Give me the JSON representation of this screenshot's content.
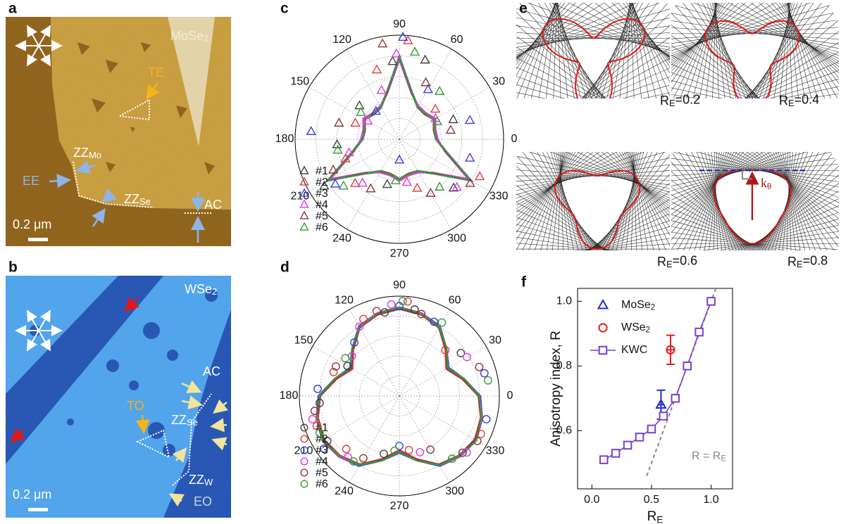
{
  "panel_a": {
    "label": "a",
    "material": {
      "base": "MoSe",
      "sub": "2"
    },
    "te": "TE",
    "zz_mo": {
      "base": "ZZ",
      "sub": "Mo"
    },
    "ee": "EE",
    "zz_se": {
      "base": "ZZ",
      "sub": "Se"
    },
    "ac": "AC",
    "scale": "0.2 μm"
  },
  "panel_b": {
    "label": "b",
    "material": {
      "base": "WSe",
      "sub": "2"
    },
    "ac": "AC",
    "to": "TO",
    "zz_se": {
      "base": "ZZ",
      "sub": "Se"
    },
    "zz_w": {
      "base": "ZZ",
      "sub": "W"
    },
    "eo": "EO",
    "scale": "0.2 μm"
  },
  "panel_e": {
    "label": "e",
    "plots": [
      {
        "base": "R",
        "sub": "E",
        "rest": "=0.2"
      },
      {
        "base": "R",
        "sub": "E",
        "rest": "=0.4"
      },
      {
        "base": "R",
        "sub": "E",
        "rest": "=0.6"
      },
      {
        "base": "R",
        "sub": "E",
        "rest": "=0.8"
      }
    ],
    "k": {
      "base": "k",
      "sub": "θ"
    }
  },
  "chart_data": [
    {
      "type": "polar",
      "panel_label": "c",
      "rlim": [
        0,
        1
      ],
      "rgrid": [
        0.2,
        0.4,
        0.6,
        0.8
      ],
      "thetaticks": [
        0,
        30,
        60,
        90,
        120,
        150,
        180,
        210,
        240,
        270,
        300,
        330
      ],
      "fit_theta": [
        0,
        15,
        30,
        45,
        60,
        75,
        90,
        105,
        120,
        135,
        150,
        165,
        180,
        195,
        210,
        225,
        240,
        255,
        270,
        285,
        300,
        315,
        330,
        345
      ],
      "series": [
        {
          "name": "#1",
          "color": "#404040",
          "marker": "triangle",
          "theta": [
            72,
            95,
            20,
            140,
            185,
            212,
            255,
            318
          ],
          "r": [
            0.8,
            0.75,
            0.55,
            0.5,
            0.6,
            0.85,
            0.45,
            0.7
          ],
          "fit": [
            0.35,
            0.34,
            0.38,
            0.34,
            0.35,
            0.46,
            0.78,
            0.46,
            0.35,
            0.34,
            0.38,
            0.34,
            0.35,
            0.46,
            0.78,
            0.46,
            0.35,
            0.34,
            0.38,
            0.34,
            0.35,
            0.46,
            0.78,
            0.46
          ]
        },
        {
          "name": "#2",
          "color": "#e03c3c",
          "marker": "triangle",
          "theta": [
            85,
            108,
            40,
            160,
            200,
            225,
            290,
            335
          ],
          "r": [
            0.95,
            0.7,
            0.45,
            0.45,
            0.55,
            0.6,
            0.5,
            0.85
          ],
          "fit": [
            0.36,
            0.35,
            0.39,
            0.35,
            0.36,
            0.47,
            0.79,
            0.47,
            0.36,
            0.35,
            0.39,
            0.35,
            0.36,
            0.47,
            0.79,
            0.47,
            0.36,
            0.35,
            0.39,
            0.35,
            0.36,
            0.47,
            0.79,
            0.47
          ]
        },
        {
          "name": "#3",
          "color": "#3c3ce0",
          "marker": "triangle",
          "theta": [
            88,
            60,
            15,
            130,
            175,
            215,
            270,
            345
          ],
          "r": [
            0.98,
            0.55,
            0.7,
            0.35,
            0.85,
            0.75,
            0.2,
            0.7
          ],
          "fit": [
            0.36,
            0.35,
            0.38,
            0.35,
            0.36,
            0.47,
            0.8,
            0.47,
            0.36,
            0.35,
            0.38,
            0.35,
            0.36,
            0.47,
            0.8,
            0.47,
            0.36,
            0.35,
            0.38,
            0.35,
            0.36,
            0.47,
            0.8,
            0.47
          ]
        },
        {
          "name": "#4",
          "color": "#e03ce0",
          "marker": "triangle",
          "theta": [
            92,
            110,
            30,
            150,
            195,
            230,
            280,
            320
          ],
          "r": [
            0.82,
            0.5,
            0.4,
            0.35,
            0.5,
            0.55,
            0.42,
            0.72
          ],
          "fit": [
            0.37,
            0.36,
            0.4,
            0.36,
            0.37,
            0.45,
            0.76,
            0.45,
            0.37,
            0.36,
            0.4,
            0.36,
            0.37,
            0.45,
            0.76,
            0.45,
            0.37,
            0.36,
            0.4,
            0.36,
            0.37,
            0.45,
            0.76,
            0.45
          ]
        },
        {
          "name": "#5",
          "color": "#8b3a3a",
          "marker": "triangle",
          "theta": [
            100,
            65,
            10,
            165,
            205,
            240,
            300,
            328
          ],
          "r": [
            0.93,
            0.6,
            0.5,
            0.6,
            0.7,
            0.55,
            0.6,
            0.8
          ],
          "fit": [
            0.35,
            0.34,
            0.38,
            0.34,
            0.35,
            0.46,
            0.79,
            0.46,
            0.35,
            0.34,
            0.38,
            0.34,
            0.35,
            0.46,
            0.79,
            0.46,
            0.35,
            0.34,
            0.38,
            0.34,
            0.35,
            0.46,
            0.79,
            0.46
          ]
        },
        {
          "name": "#6",
          "color": "#3a9a3a",
          "marker": "triangle",
          "theta": [
            80,
            50,
            25,
            145,
            190,
            220,
            265,
            310
          ],
          "r": [
            0.85,
            0.6,
            0.4,
            0.45,
            0.6,
            0.7,
            0.4,
            0.6
          ],
          "fit": [
            0.35,
            0.35,
            0.38,
            0.35,
            0.35,
            0.47,
            0.79,
            0.47,
            0.35,
            0.35,
            0.38,
            0.35,
            0.35,
            0.47,
            0.79,
            0.47,
            0.35,
            0.35,
            0.38,
            0.35,
            0.35,
            0.47,
            0.79,
            0.47
          ]
        }
      ]
    },
    {
      "type": "polar",
      "panel_label": "d",
      "rlim": [
        0,
        1
      ],
      "rgrid": [
        0.2,
        0.4,
        0.6,
        0.8
      ],
      "thetaticks": [
        0,
        30,
        60,
        90,
        120,
        150,
        180,
        210,
        240,
        270,
        300,
        330
      ],
      "fit_theta": [
        0,
        15,
        30,
        45,
        60,
        75,
        90,
        105,
        120,
        135,
        150,
        165,
        180,
        195,
        210,
        225,
        240,
        255,
        270,
        285,
        300,
        315,
        330,
        345
      ],
      "series": [
        {
          "name": "#1",
          "color": "#404040",
          "marker": "circle",
          "theta": [
            80,
            100,
            35,
            150,
            185,
            212,
            255,
            318
          ],
          "r": [
            0.88,
            0.85,
            0.75,
            0.6,
            0.8,
            0.85,
            0.6,
            0.85
          ],
          "fit": [
            0.8,
            0.66,
            0.56,
            0.66,
            0.8,
            0.85,
            0.88,
            0.85,
            0.8,
            0.66,
            0.56,
            0.66,
            0.8,
            0.85,
            0.88,
            0.85,
            0.8,
            0.66,
            0.56,
            0.66,
            0.8,
            0.85,
            0.88,
            0.85
          ]
        },
        {
          "name": "#2",
          "color": "#e03c3c",
          "marker": "circle",
          "theta": [
            85,
            115,
            45,
            160,
            200,
            225,
            280,
            335
          ],
          "r": [
            0.95,
            0.85,
            0.65,
            0.7,
            0.88,
            0.75,
            0.55,
            0.9
          ],
          "fit": [
            0.79,
            0.65,
            0.54,
            0.65,
            0.79,
            0.84,
            0.87,
            0.84,
            0.79,
            0.65,
            0.54,
            0.65,
            0.79,
            0.84,
            0.87,
            0.84,
            0.79,
            0.65,
            0.54,
            0.65,
            0.79,
            0.84,
            0.87,
            0.84
          ]
        },
        {
          "name": "#3",
          "color": "#3c3ce0",
          "marker": "circle",
          "theta": [
            90,
            65,
            15,
            130,
            175,
            215,
            270,
            345
          ],
          "r": [
            0.9,
            0.82,
            0.88,
            0.7,
            0.82,
            0.92,
            0.5,
            0.9
          ],
          "fit": [
            0.81,
            0.67,
            0.57,
            0.67,
            0.81,
            0.86,
            0.89,
            0.86,
            0.81,
            0.67,
            0.57,
            0.67,
            0.81,
            0.86,
            0.89,
            0.86,
            0.81,
            0.67,
            0.57,
            0.67,
            0.81,
            0.86,
            0.89,
            0.86
          ]
        },
        {
          "name": "#4",
          "color": "#e03ce0",
          "marker": "circle",
          "theta": [
            95,
            120,
            30,
            140,
            195,
            230,
            290,
            320
          ],
          "r": [
            0.92,
            0.8,
            0.78,
            0.62,
            0.9,
            0.8,
            0.6,
            0.88
          ],
          "fit": [
            0.8,
            0.66,
            0.56,
            0.66,
            0.8,
            0.86,
            0.88,
            0.86,
            0.8,
            0.66,
            0.56,
            0.66,
            0.8,
            0.86,
            0.88,
            0.86,
            0.8,
            0.66,
            0.56,
            0.66,
            0.8,
            0.86,
            0.88,
            0.86
          ]
        },
        {
          "name": "#5",
          "color": "#8b3a3a",
          "marker": "circle",
          "theta": [
            75,
            105,
            20,
            155,
            190,
            240,
            300,
            330
          ],
          "r": [
            0.85,
            0.88,
            0.85,
            0.7,
            0.86,
            0.72,
            0.62,
            0.9
          ],
          "fit": [
            0.79,
            0.66,
            0.55,
            0.66,
            0.79,
            0.85,
            0.87,
            0.85,
            0.79,
            0.66,
            0.55,
            0.66,
            0.79,
            0.85,
            0.87,
            0.85,
            0.79,
            0.66,
            0.55,
            0.66,
            0.79,
            0.85,
            0.87,
            0.85
          ]
        },
        {
          "name": "#6",
          "color": "#3a9a3a",
          "marker": "circle",
          "theta": [
            88,
            60,
            10,
            145,
            205,
            235,
            265,
            310
          ],
          "r": [
            0.95,
            0.85,
            0.9,
            0.66,
            0.88,
            0.8,
            0.55,
            0.82
          ],
          "fit": [
            0.8,
            0.67,
            0.56,
            0.67,
            0.8,
            0.85,
            0.89,
            0.85,
            0.8,
            0.67,
            0.56,
            0.67,
            0.8,
            0.85,
            0.89,
            0.85,
            0.8,
            0.67,
            0.56,
            0.67,
            0.8,
            0.85,
            0.89,
            0.85
          ]
        }
      ]
    },
    {
      "type": "line",
      "panel_label": "f",
      "xlabel": {
        "base": "R",
        "sub": "E"
      },
      "ylabel": "Anisotropy index, R",
      "xlim": [
        -0.12,
        1.18
      ],
      "ylim": [
        0.42,
        1.04
      ],
      "xticks": [
        {
          "value": 0,
          "label": "0.0"
        },
        0.5,
        {
          "value": 1,
          "label": "1.0"
        }
      ],
      "yticks": [
        0.6,
        0.8,
        {
          "value": 1,
          "label": "1.0"
        }
      ],
      "series": [
        {
          "name": {
            "base": "MoSe",
            "sub": "2"
          },
          "color": "#1f2fd0",
          "marker": "triangle",
          "x": [
            0.58
          ],
          "values": [
            0.68
          ],
          "xerr": [
            0.03
          ],
          "yerr": [
            0.045
          ]
        },
        {
          "name": {
            "base": "WSe",
            "sub": "2"
          },
          "color": "#e02020",
          "marker": "circle",
          "x": [
            0.66
          ],
          "values": [
            0.85
          ],
          "xerr": [
            0.03
          ],
          "yerr": [
            0.045
          ]
        },
        {
          "name": "KWC",
          "color": "#7b3fd0",
          "marker": "square",
          "x": [
            0.1,
            0.2,
            0.3,
            0.4,
            0.5,
            0.6,
            0.7,
            0.8,
            0.9,
            1.0
          ],
          "values": [
            0.51,
            0.53,
            0.555,
            0.58,
            0.605,
            0.645,
            0.7,
            0.8,
            0.905,
            1.0
          ]
        }
      ],
      "reference_line": {
        "label": {
          "base": "R = R",
          "sub": "E"
        },
        "color": "#888888",
        "x": [
          0.46,
          1.04
        ],
        "values": [
          0.46,
          1.04
        ]
      }
    }
  ]
}
